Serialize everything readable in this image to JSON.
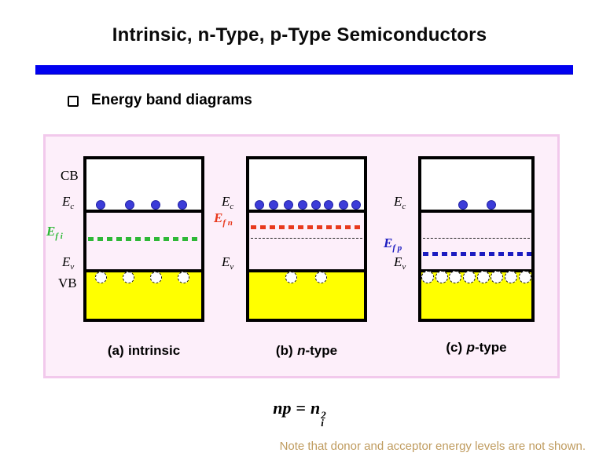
{
  "title": "Intrinsic, n-Type, p-Type Semiconductors",
  "bullet": {
    "text": "Energy band diagrams"
  },
  "band_labels": {
    "cb": "CB",
    "vb": "VB",
    "E": "E",
    "sub_c": "c",
    "sub_v": "v",
    "sub_fi": "f i",
    "sub_fn": "f n",
    "sub_fp": "f p"
  },
  "diagrams": [
    {
      "name": "intrinsic",
      "caption_pre": "(a)",
      "caption_var": "",
      "caption_rest": "intrinsic",
      "fermi_line": "green dashed at mid-gap (E_fi)",
      "electrons_x": [
        18,
        55,
        88,
        122
      ],
      "holes_x": [
        18,
        53,
        88,
        123
      ]
    },
    {
      "name": "n-type",
      "caption_pre": "(b)",
      "caption_var": "n",
      "caption_rest": "-type",
      "fermi_line": "red dashed near E_c (E_fn), thin dashed intrinsic reference at mid-gap",
      "electrons_x": [
        13,
        31,
        50,
        68,
        85,
        101,
        120,
        136
      ],
      "holes_x": [
        53,
        91
      ]
    },
    {
      "name": "p-type",
      "caption_pre": "(c)",
      "caption_var": "p",
      "caption_rest": "-type",
      "fermi_line": "blue dashed near E_v (E_fp), thin dashed intrinsic reference at mid-gap",
      "electrons_x": [
        53,
        89
      ],
      "holes_x": [
        8,
        26,
        43,
        61,
        79,
        96,
        114,
        132
      ]
    }
  ],
  "formula": {
    "lhs": "np",
    "equals": "=",
    "base": "n",
    "sub": "i",
    "sup": "2"
  },
  "note": "Note that donor and acceptor energy levels are not shown.",
  "colors": {
    "accent_bar": "#0101f0",
    "panel_bg": "#fdeffa",
    "panel_border": "#f2c9ec",
    "valence_band_fill": "#ffff00",
    "electron_dot": "#3c3cd8",
    "efi_green": "#2eb837",
    "efn_red": "#e8391d",
    "efp_blue": "#1c1cc0",
    "note_text": "#bf9b5e"
  }
}
